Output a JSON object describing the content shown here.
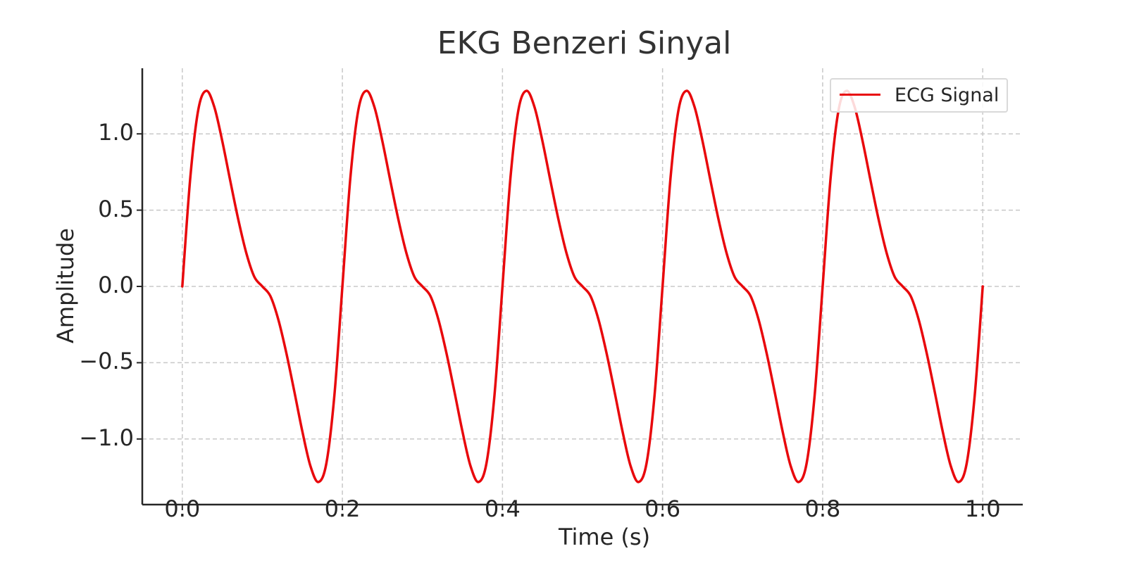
{
  "chart_data": {
    "type": "line",
    "title": "EKG Benzeri Sinyal",
    "xlabel": "Time (s)",
    "ylabel": "Amplitude",
    "xlim": [
      -0.05,
      1.05
    ],
    "ylim": [
      -1.43,
      1.43
    ],
    "xticks": [
      "0.0",
      "0.2",
      "0.4",
      "0.6",
      "0.8",
      "1.0"
    ],
    "yticks": [
      "1.0",
      "0.5",
      "0.0",
      "−0.5",
      "−1.0"
    ],
    "ytick_values": [
      1.0,
      0.5,
      0.0,
      -0.5,
      -1.0
    ],
    "xtick_values": [
      0.0,
      0.2,
      0.4,
      0.6,
      0.8,
      1.0
    ],
    "grid": true,
    "legend_position": "top-right",
    "series": [
      {
        "name": "ECG Signal",
        "color": "#e8080c",
        "x": [
          0.0,
          0.01,
          0.02,
          0.03,
          0.04,
          0.05,
          0.06,
          0.07,
          0.08,
          0.09,
          0.1,
          0.11,
          0.12,
          0.13,
          0.14,
          0.15,
          0.16,
          0.17,
          0.18,
          0.19,
          0.2,
          0.21,
          0.22,
          0.23,
          0.24,
          0.25,
          0.26,
          0.27,
          0.28,
          0.29,
          0.3,
          0.31,
          0.32,
          0.33,
          0.34,
          0.35,
          0.36,
          0.37,
          0.38,
          0.39,
          0.4,
          0.41,
          0.42,
          0.43,
          0.44,
          0.45,
          0.46,
          0.47,
          0.48,
          0.49,
          0.5,
          0.51,
          0.52,
          0.53,
          0.54,
          0.55,
          0.56,
          0.57,
          0.58,
          0.59,
          0.6,
          0.61,
          0.62,
          0.63,
          0.64,
          0.65,
          0.66,
          0.67,
          0.68,
          0.69,
          0.7,
          0.71,
          0.72,
          0.73,
          0.74,
          0.75,
          0.76,
          0.77,
          0.78,
          0.79,
          0.8,
          0.81,
          0.82,
          0.83,
          0.84,
          0.85,
          0.86,
          0.87,
          0.88,
          0.89,
          0.9,
          0.91,
          0.92,
          0.93,
          0.94,
          0.95,
          0.96,
          0.97,
          0.98,
          0.99,
          1.0
        ],
        "y": [
          0.0,
          0.714,
          1.159,
          1.282,
          1.176,
          0.951,
          0.69,
          0.437,
          0.218,
          0.063,
          0.0,
          -0.063,
          -0.218,
          -0.437,
          -0.69,
          -0.951,
          -1.176,
          -1.282,
          -1.159,
          -0.714,
          0.0,
          0.714,
          1.159,
          1.282,
          1.176,
          0.951,
          0.69,
          0.437,
          0.218,
          0.063,
          0.0,
          -0.063,
          -0.218,
          -0.437,
          -0.69,
          -0.951,
          -1.176,
          -1.282,
          -1.159,
          -0.714,
          0.0,
          0.714,
          1.159,
          1.282,
          1.176,
          0.951,
          0.69,
          0.437,
          0.218,
          0.063,
          0.0,
          -0.063,
          -0.218,
          -0.437,
          -0.69,
          -0.951,
          -1.176,
          -1.282,
          -1.159,
          -0.714,
          0.0,
          0.714,
          1.159,
          1.282,
          1.176,
          0.951,
          0.69,
          0.437,
          0.218,
          0.063,
          0.0,
          -0.063,
          -0.218,
          -0.437,
          -0.69,
          -0.951,
          -1.176,
          -1.282,
          -1.159,
          -0.714,
          0.0,
          0.714,
          1.159,
          1.282,
          1.176,
          0.951,
          0.69,
          0.437,
          0.218,
          0.063,
          0.0,
          -0.063,
          -0.218,
          -0.437,
          -0.69,
          -0.951,
          -1.176,
          -1.282,
          -1.159,
          -0.714,
          0.0
        ]
      }
    ]
  }
}
